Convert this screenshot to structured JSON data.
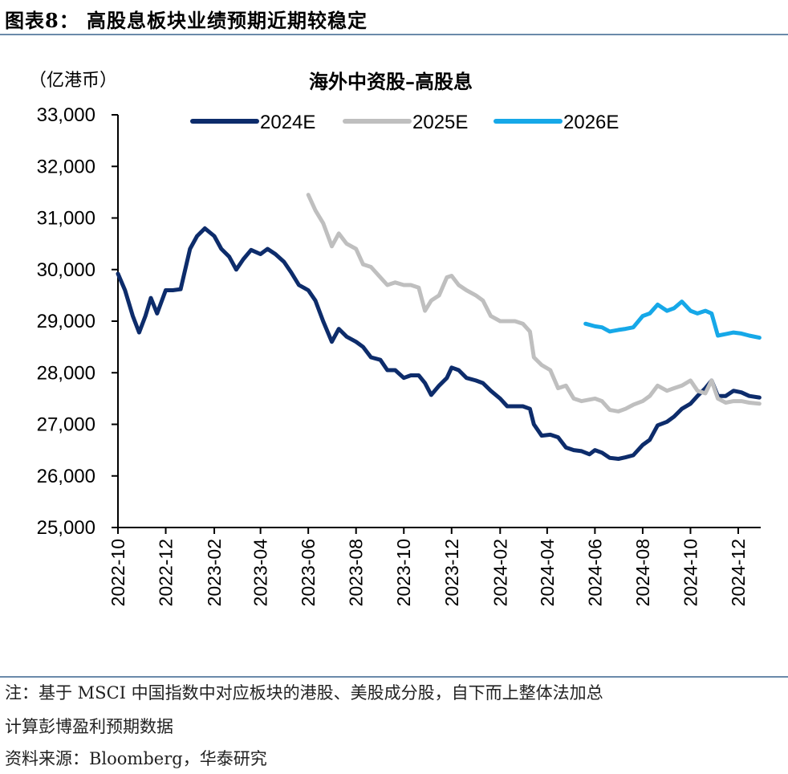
{
  "figure_title": "图表8：  高股息板块业绩预期近期较稳定",
  "notes": {
    "line1": "注：基于 MSCI 中国指数中对应板块的港股、美股成分股，自下而上整体法加总",
    "line2": "计算彭博盈利预期数据",
    "source": "资料来源：Bloomberg，华泰研究"
  },
  "colors": {
    "2024E": "#0d2c6b",
    "2025E": "#bfbfbf",
    "2026E": "#16a8e8",
    "rule": "#6a8aaa"
  },
  "chart_data": {
    "type": "line",
    "title": "海外中资股–高股息",
    "unit_label": "（亿港币）",
    "ylim": [
      25000,
      33000
    ],
    "yticks": [
      "25,000",
      "26,000",
      "27,000",
      "28,000",
      "29,000",
      "30,000",
      "31,000",
      "32,000",
      "33,000"
    ],
    "xlim": [
      "2022-10",
      "2025-01"
    ],
    "xticks": [
      "2022-10",
      "2022-12",
      "2023-02",
      "2023-04",
      "2023-06",
      "2023-08",
      "2023-10",
      "2023-12",
      "2024-02",
      "2024-04",
      "2024-06",
      "2024-08",
      "2024-10",
      "2024-12"
    ],
    "legend_position": "top",
    "grid": false,
    "series": [
      {
        "name": "2024E",
        "color": "#0d2c6b",
        "points": [
          [
            "2022-10-01",
            29920
          ],
          [
            "2022-10-10",
            29600
          ],
          [
            "2022-10-20",
            29100
          ],
          [
            "2022-10-28",
            28780
          ],
          [
            "2022-11-05",
            29100
          ],
          [
            "2022-11-12",
            29450
          ],
          [
            "2022-11-20",
            29150
          ],
          [
            "2022-12-01",
            29600
          ],
          [
            "2022-12-10",
            29600
          ],
          [
            "2022-12-20",
            29620
          ],
          [
            "2023-01-01",
            30400
          ],
          [
            "2023-01-10",
            30650
          ],
          [
            "2023-01-20",
            30800
          ],
          [
            "2023-02-01",
            30650
          ],
          [
            "2023-02-10",
            30400
          ],
          [
            "2023-02-20",
            30250
          ],
          [
            "2023-03-01",
            30000
          ],
          [
            "2023-03-10",
            30200
          ],
          [
            "2023-03-20",
            30380
          ],
          [
            "2023-04-01",
            30300
          ],
          [
            "2023-04-10",
            30400
          ],
          [
            "2023-04-20",
            30300
          ],
          [
            "2023-05-01",
            30150
          ],
          [
            "2023-05-10",
            29950
          ],
          [
            "2023-05-20",
            29700
          ],
          [
            "2023-06-01",
            29600
          ],
          [
            "2023-06-10",
            29400
          ],
          [
            "2023-06-20",
            29000
          ],
          [
            "2023-07-01",
            28600
          ],
          [
            "2023-07-10",
            28850
          ],
          [
            "2023-07-20",
            28700
          ],
          [
            "2023-08-01",
            28600
          ],
          [
            "2023-08-10",
            28500
          ],
          [
            "2023-08-20",
            28300
          ],
          [
            "2023-09-01",
            28250
          ],
          [
            "2023-09-10",
            28050
          ],
          [
            "2023-09-20",
            28050
          ],
          [
            "2023-10-01",
            27900
          ],
          [
            "2023-10-10",
            27950
          ],
          [
            "2023-10-20",
            27950
          ],
          [
            "2023-10-28",
            27800
          ],
          [
            "2023-11-05",
            27570
          ],
          [
            "2023-11-15",
            27750
          ],
          [
            "2023-11-25",
            27900
          ],
          [
            "2023-12-01",
            28100
          ],
          [
            "2023-12-10",
            28050
          ],
          [
            "2023-12-20",
            27900
          ],
          [
            "2024-01-01",
            27850
          ],
          [
            "2024-01-10",
            27800
          ],
          [
            "2024-01-20",
            27650
          ],
          [
            "2024-02-01",
            27500
          ],
          [
            "2024-02-10",
            27350
          ],
          [
            "2024-02-20",
            27350
          ],
          [
            "2024-03-01",
            27350
          ],
          [
            "2024-03-10",
            27300
          ],
          [
            "2024-03-15",
            27000
          ],
          [
            "2024-03-25",
            26780
          ],
          [
            "2024-04-05",
            26800
          ],
          [
            "2024-04-15",
            26750
          ],
          [
            "2024-04-25",
            26550
          ],
          [
            "2024-05-05",
            26500
          ],
          [
            "2024-05-15",
            26480
          ],
          [
            "2024-05-25",
            26420
          ],
          [
            "2024-06-01",
            26500
          ],
          [
            "2024-06-10",
            26450
          ],
          [
            "2024-06-20",
            26350
          ],
          [
            "2024-07-01",
            26330
          ],
          [
            "2024-07-10",
            26360
          ],
          [
            "2024-07-20",
            26400
          ],
          [
            "2024-08-01",
            26600
          ],
          [
            "2024-08-10",
            26700
          ],
          [
            "2024-08-20",
            26980
          ],
          [
            "2024-09-01",
            27050
          ],
          [
            "2024-09-10",
            27150
          ],
          [
            "2024-09-20",
            27300
          ],
          [
            "2024-10-01",
            27400
          ],
          [
            "2024-10-10",
            27550
          ],
          [
            "2024-10-20",
            27700
          ],
          [
            "2024-10-28",
            27850
          ],
          [
            "2024-11-05",
            27550
          ],
          [
            "2024-11-15",
            27550
          ],
          [
            "2024-11-25",
            27650
          ],
          [
            "2024-12-05",
            27620
          ],
          [
            "2024-12-15",
            27550
          ],
          [
            "2024-12-28",
            27520
          ]
        ]
      },
      {
        "name": "2025E",
        "color": "#bfbfbf",
        "points": [
          [
            "2023-06-01",
            31450
          ],
          [
            "2023-06-10",
            31150
          ],
          [
            "2023-06-20",
            30900
          ],
          [
            "2023-07-01",
            30450
          ],
          [
            "2023-07-10",
            30700
          ],
          [
            "2023-07-20",
            30500
          ],
          [
            "2023-08-01",
            30400
          ],
          [
            "2023-08-10",
            30100
          ],
          [
            "2023-08-20",
            30050
          ],
          [
            "2023-09-01",
            29850
          ],
          [
            "2023-09-10",
            29700
          ],
          [
            "2023-09-20",
            29750
          ],
          [
            "2023-10-01",
            29700
          ],
          [
            "2023-10-10",
            29700
          ],
          [
            "2023-10-20",
            29650
          ],
          [
            "2023-10-28",
            29200
          ],
          [
            "2023-11-05",
            29400
          ],
          [
            "2023-11-15",
            29500
          ],
          [
            "2023-11-25",
            29850
          ],
          [
            "2023-12-01",
            29880
          ],
          [
            "2023-12-10",
            29700
          ],
          [
            "2023-12-20",
            29600
          ],
          [
            "2024-01-01",
            29500
          ],
          [
            "2024-01-10",
            29400
          ],
          [
            "2024-01-20",
            29100
          ],
          [
            "2024-02-01",
            29000
          ],
          [
            "2024-02-10",
            29000
          ],
          [
            "2024-02-20",
            29000
          ],
          [
            "2024-03-01",
            28950
          ],
          [
            "2024-03-10",
            28800
          ],
          [
            "2024-03-15",
            28300
          ],
          [
            "2024-03-25",
            28150
          ],
          [
            "2024-04-05",
            28050
          ],
          [
            "2024-04-15",
            27700
          ],
          [
            "2024-04-25",
            27750
          ],
          [
            "2024-05-05",
            27500
          ],
          [
            "2024-05-15",
            27450
          ],
          [
            "2024-05-25",
            27480
          ],
          [
            "2024-06-01",
            27500
          ],
          [
            "2024-06-10",
            27450
          ],
          [
            "2024-06-20",
            27280
          ],
          [
            "2024-07-01",
            27250
          ],
          [
            "2024-07-10",
            27300
          ],
          [
            "2024-07-20",
            27380
          ],
          [
            "2024-08-01",
            27450
          ],
          [
            "2024-08-10",
            27550
          ],
          [
            "2024-08-20",
            27750
          ],
          [
            "2024-09-01",
            27650
          ],
          [
            "2024-09-10",
            27700
          ],
          [
            "2024-09-20",
            27750
          ],
          [
            "2024-10-01",
            27850
          ],
          [
            "2024-10-10",
            27650
          ],
          [
            "2024-10-20",
            27600
          ],
          [
            "2024-10-28",
            27850
          ],
          [
            "2024-11-05",
            27500
          ],
          [
            "2024-11-15",
            27420
          ],
          [
            "2024-11-25",
            27450
          ],
          [
            "2024-12-05",
            27450
          ],
          [
            "2024-12-15",
            27420
          ],
          [
            "2024-12-28",
            27400
          ]
        ]
      },
      {
        "name": "2026E",
        "color": "#16a8e8",
        "points": [
          [
            "2024-05-20",
            28950
          ],
          [
            "2024-06-01",
            28900
          ],
          [
            "2024-06-10",
            28880
          ],
          [
            "2024-06-20",
            28800
          ],
          [
            "2024-07-01",
            28830
          ],
          [
            "2024-07-10",
            28850
          ],
          [
            "2024-07-20",
            28880
          ],
          [
            "2024-08-01",
            29100
          ],
          [
            "2024-08-10",
            29150
          ],
          [
            "2024-08-20",
            29320
          ],
          [
            "2024-09-01",
            29200
          ],
          [
            "2024-09-10",
            29250
          ],
          [
            "2024-09-20",
            29380
          ],
          [
            "2024-10-01",
            29200
          ],
          [
            "2024-10-10",
            29150
          ],
          [
            "2024-10-20",
            29200
          ],
          [
            "2024-10-28",
            29150
          ],
          [
            "2024-11-05",
            28720
          ],
          [
            "2024-11-15",
            28750
          ],
          [
            "2024-11-25",
            28780
          ],
          [
            "2024-12-05",
            28760
          ],
          [
            "2024-12-15",
            28720
          ],
          [
            "2024-12-28",
            28680
          ]
        ]
      }
    ]
  }
}
